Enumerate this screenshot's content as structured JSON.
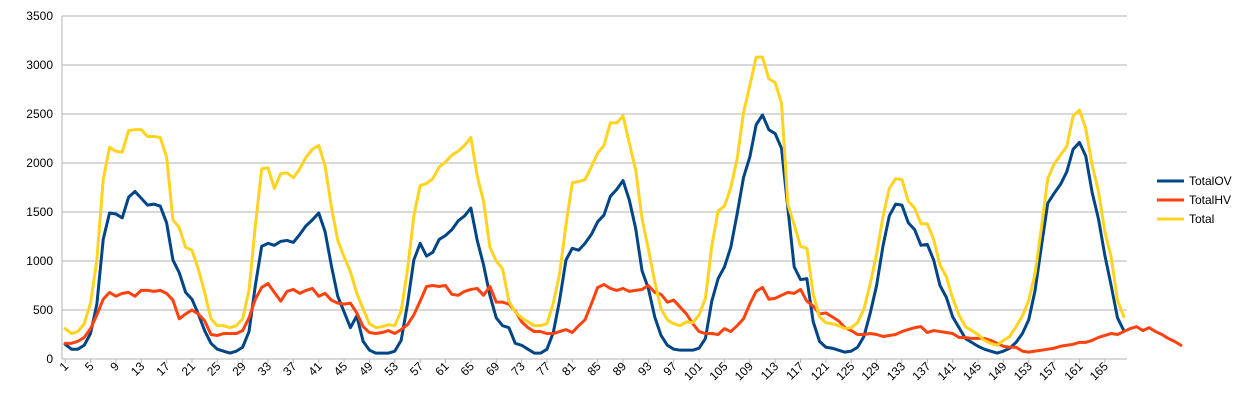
{
  "chart_data": {
    "type": "line",
    "title": "",
    "xlabel": "",
    "ylabel": "",
    "ylim": [
      0,
      3500
    ],
    "yticks": [
      0,
      500,
      1000,
      1500,
      2000,
      2500,
      3000,
      3500
    ],
    "grid": "horizontal",
    "legend": "right",
    "xtick_labels": [
      "1",
      "5",
      "9",
      "13",
      "17",
      "21",
      "25",
      "29",
      "33",
      "37",
      "41",
      "45",
      "49",
      "53",
      "57",
      "61",
      "65",
      "69",
      "73",
      "77",
      "81",
      "85",
      "89",
      "93",
      "97",
      "101",
      "105",
      "109",
      "113",
      "117",
      "121",
      "125",
      "129",
      "133",
      "137",
      "141",
      "145",
      "149",
      "153",
      "157",
      "161",
      "165"
    ],
    "series": [
      {
        "name": "TotalOV",
        "color": "#004586",
        "values": [
          150,
          100,
          100,
          140,
          260,
          560,
          1220,
          1490,
          1480,
          1440,
          1650,
          1710,
          1640,
          1570,
          1580,
          1560,
          1390,
          1010,
          880,
          680,
          610,
          460,
          290,
          160,
          100,
          80,
          60,
          80,
          120,
          280,
          750,
          1150,
          1180,
          1160,
          1200,
          1210,
          1190,
          1270,
          1360,
          1420,
          1490,
          1300,
          950,
          640,
          480,
          320,
          440,
          180,
          90,
          60,
          60,
          60,
          80,
          190,
          560,
          1010,
          1180,
          1050,
          1090,
          1220,
          1260,
          1320,
          1410,
          1460,
          1540,
          1210,
          960,
          650,
          420,
          340,
          320,
          160,
          140,
          100,
          60,
          60,
          100,
          270,
          600,
          1010,
          1130,
          1110,
          1180,
          1270,
          1400,
          1470,
          1660,
          1730,
          1820,
          1620,
          1330,
          900,
          720,
          430,
          240,
          140,
          100,
          90,
          90,
          90,
          110,
          210,
          590,
          820,
          940,
          1140,
          1480,
          1850,
          2060,
          2390,
          2490,
          2340,
          2300,
          2150,
          1540,
          940,
          810,
          820,
          380,
          180,
          120,
          110,
          90,
          70,
          80,
          120,
          230,
          470,
          750,
          1150,
          1460,
          1580,
          1570,
          1390,
          1320,
          1160,
          1170,
          1010,
          750,
          630,
          430,
          320,
          210,
          170,
          130,
          100,
          80,
          60,
          80,
          110,
          170,
          260,
          400,
          700,
          1150,
          1590,
          1690,
          1780,
          1910,
          2140,
          2210,
          2070,
          1700,
          1430,
          1060,
          750,
          420,
          290
        ]
      },
      {
        "name": "TotalHV",
        "color": "#ff420e",
        "values": [
          160,
          160,
          180,
          220,
          310,
          450,
          610,
          680,
          640,
          670,
          680,
          640,
          700,
          700,
          690,
          700,
          670,
          600,
          410,
          460,
          500,
          460,
          390,
          250,
          240,
          260,
          260,
          260,
          290,
          420,
          610,
          730,
          770,
          680,
          590,
          690,
          710,
          670,
          700,
          720,
          640,
          670,
          600,
          570,
          560,
          570,
          470,
          330,
          270,
          260,
          270,
          290,
          260,
          300,
          350,
          450,
          590,
          740,
          750,
          740,
          750,
          660,
          650,
          690,
          710,
          720,
          650,
          740,
          580,
          580,
          560,
          490,
          380,
          320,
          280,
          280,
          260,
          260,
          280,
          300,
          270,
          340,
          400,
          560,
          730,
          760,
          720,
          700,
          720,
          690,
          700,
          710,
          750,
          680,
          660,
          580,
          600,
          530,
          460,
          360,
          280,
          260,
          260,
          250,
          310,
          280,
          340,
          410,
          560,
          690,
          730,
          610,
          620,
          650,
          680,
          670,
          710,
          590,
          540,
          460,
          470,
          430,
          390,
          320,
          290,
          250,
          250,
          260,
          250,
          230,
          240,
          250,
          280,
          300,
          320,
          330,
          270,
          290,
          280,
          270,
          260,
          220,
          220,
          210,
          210,
          210,
          190,
          160,
          130,
          120,
          120,
          80,
          70,
          80,
          90,
          100,
          110,
          130,
          140,
          150,
          170,
          170,
          190,
          220,
          240,
          260,
          250,
          280,
          310,
          330,
          290,
          320,
          280,
          250,
          210,
          180,
          140
        ]
      },
      {
        "name": "Total",
        "color": "#ffd320",
        "values": [
          310,
          260,
          280,
          360,
          570,
          1010,
          1830,
          2160,
          2120,
          2110,
          2330,
          2340,
          2340,
          2270,
          2270,
          2260,
          2060,
          1420,
          1340,
          1140,
          1110,
          920,
          680,
          410,
          340,
          340,
          320,
          340,
          410,
          700,
          1360,
          1940,
          1950,
          1740,
          1890,
          1900,
          1850,
          1940,
          2060,
          2140,
          2180,
          1970,
          1550,
          1210,
          1040,
          890,
          670,
          510,
          360,
          320,
          330,
          350,
          340,
          490,
          910,
          1460,
          1770,
          1790,
          1840,
          1960,
          2010,
          2080,
          2120,
          2180,
          2260,
          1870,
          1610,
          1140,
          1000,
          920,
          590,
          480,
          420,
          380,
          340,
          340,
          360,
          570,
          870,
          1370,
          1800,
          1810,
          1830,
          1960,
          2100,
          2180,
          2410,
          2410,
          2480,
          2200,
          1930,
          1430,
          1120,
          790,
          510,
          400,
          360,
          340,
          380,
          370,
          450,
          620,
          1150,
          1510,
          1560,
          1750,
          2040,
          2510,
          2790,
          3080,
          3080,
          2860,
          2820,
          2610,
          1580,
          1370,
          1150,
          1130,
          660,
          430,
          370,
          360,
          340,
          310,
          320,
          370,
          510,
          770,
          1070,
          1450,
          1740,
          1840,
          1830,
          1610,
          1540,
          1380,
          1380,
          1220,
          960,
          840,
          620,
          450,
          330,
          290,
          250,
          190,
          160,
          140,
          190,
          230,
          330,
          440,
          600,
          870,
          1340,
          1840,
          1990,
          2080,
          2170,
          2480,
          2540,
          2350,
          1980,
          1710,
          1300,
          1040,
          600,
          430
        ]
      }
    ]
  }
}
